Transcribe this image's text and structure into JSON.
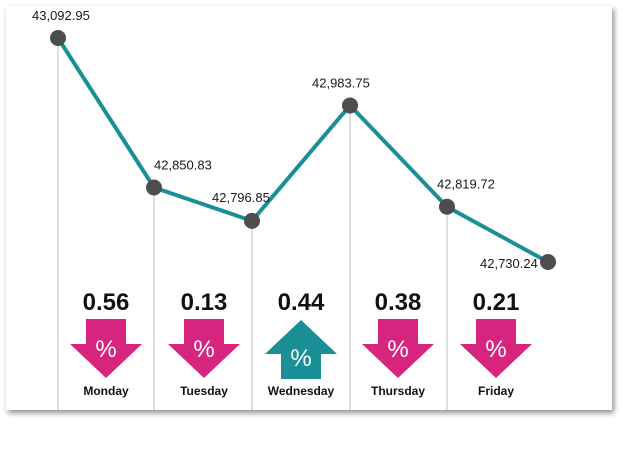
{
  "chart_data": {
    "type": "line",
    "categories": [
      "Monday",
      "Tuesday",
      "Wednesday",
      "Thursday",
      "Friday"
    ],
    "series": [
      {
        "values": [
          42850.83,
          42796.85,
          42983.75,
          42819.72,
          42730.24
        ]
      }
    ],
    "start_value": 43092.95,
    "point_labels": [
      "43,092.95",
      "42,850.83",
      "42,796.85",
      "42,983.75",
      "42,819.72",
      "42,730.24"
    ],
    "daily_change_percent": [
      {
        "day": "Monday",
        "value": "0.56",
        "direction": "down"
      },
      {
        "day": "Tuesday",
        "value": "0.13",
        "direction": "down"
      },
      {
        "day": "Wednesday",
        "value": "0.44",
        "direction": "up"
      },
      {
        "day": "Thursday",
        "value": "0.38",
        "direction": "down"
      },
      {
        "day": "Friday",
        "value": "0.21",
        "direction": "down"
      }
    ],
    "percent_symbol": "%",
    "colors": {
      "line": "#1a8f96",
      "marker": "#4d4d4f",
      "down_arrow": "#d6247f",
      "up_arrow": "#1a8f96",
      "guide": "#bdbdbd"
    }
  }
}
